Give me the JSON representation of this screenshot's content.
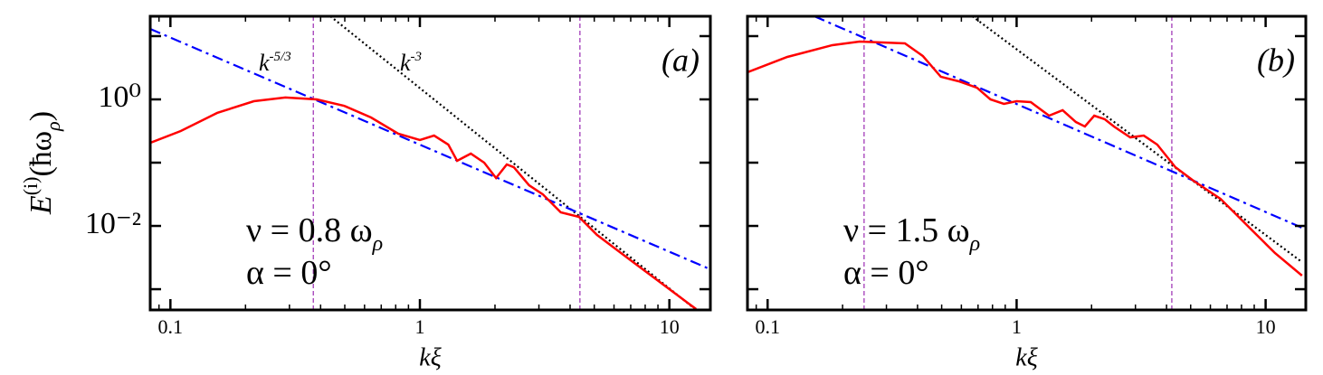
{
  "chart_data": [
    {
      "type": "line",
      "title": "(a)",
      "xlabel": "kξ",
      "ylabel": [
        "E",
        "(i)",
        "(ħω",
        "ρ",
        ")"
      ],
      "log_x": true,
      "log_y": true,
      "xlim": [
        0.083,
        14.6
      ],
      "ylim": [
        0.00047,
        20.6
      ],
      "xticks": [
        0.1,
        1,
        10
      ],
      "xminorticks": [
        0.09,
        0.2,
        0.3,
        0.4,
        0.5,
        0.6,
        0.7,
        0.8,
        0.9,
        2,
        3,
        4,
        5,
        6,
        7,
        8,
        9
      ],
      "yticks": [
        {
          "value": 1,
          "label": "10⁰"
        },
        {
          "value": 0.01,
          "label": "10⁻²"
        }
      ],
      "yminorticks": [
        10,
        0.1,
        0.001
      ],
      "vlines": [
        0.374,
        4.38
      ],
      "vline_color": "#a23bb8",
      "annotations": [
        {
          "base": "k",
          "sup": "-5/3"
        },
        {
          "base": "k",
          "sup": "-3"
        }
      ],
      "params": [
        {
          "base": "ν = 0.8 ω",
          "sub": "ρ"
        },
        {
          "base": "α = 0°"
        }
      ],
      "series": [
        {
          "color": "#ff0000",
          "style": "solid",
          "x": [
            0.083,
            0.11,
            0.154,
            0.216,
            0.289,
            0.386,
            0.496,
            0.637,
            0.819,
            1.0,
            1.14,
            1.3,
            1.41,
            1.6,
            1.81,
            2.02,
            2.23,
            2.38,
            2.74,
            3.11,
            3.67,
            4.34,
            5.13,
            7.16,
            10,
            12.8
          ],
          "values": [
            0.206,
            0.316,
            0.611,
            0.936,
            1.07,
            1.0,
            0.794,
            0.518,
            0.287,
            0.228,
            0.268,
            0.193,
            0.107,
            0.139,
            0.1,
            0.0572,
            0.0936,
            0.0848,
            0.0439,
            0.0316,
            0.0164,
            0.0139,
            0.0072,
            0.00268,
            0.001,
            0.000485
          ]
        },
        {
          "color": "#0000ff",
          "style": "dashdot",
          "x": [
            0.083,
            14.6
          ],
          "values": [
            13.0,
            0.00206
          ]
        },
        {
          "color": "#000000",
          "style": "dotted",
          "x": [
            0.438,
            12.8
          ],
          "values": [
            20.6,
            0.00047
          ]
        }
      ]
    },
    {
      "type": "line",
      "title": "(b)",
      "xlabel": "kξ",
      "log_x": true,
      "log_y": true,
      "xlim": [
        0.083,
        14.5
      ],
      "ylim": [
        0.00047,
        20.6
      ],
      "xticks": [
        0.1,
        1,
        10
      ],
      "xminorticks": [
        0.09,
        0.2,
        0.3,
        0.4,
        0.5,
        0.6,
        0.7,
        0.8,
        0.9,
        2,
        3,
        4,
        5,
        6,
        7,
        8,
        9
      ],
      "yminorticks": [
        10,
        1,
        0.1,
        0.01,
        0.001
      ],
      "vlines": [
        0.244,
        4.2
      ],
      "vline_color": "#a23bb8",
      "params": [
        {
          "base": "ν = 1.5 ω",
          "sub": "ρ"
        },
        {
          "base": "α = 0°"
        }
      ],
      "series": [
        {
          "color": "#ff0000",
          "style": "solid",
          "x": [
            0.083,
            0.12,
            0.182,
            0.234,
            0.356,
            0.42,
            0.496,
            0.586,
            0.693,
            0.785,
            0.889,
            1.0,
            1.14,
            1.35,
            1.53,
            1.73,
            1.88,
            2.05,
            2.26,
            2.46,
            2.86,
            3.24,
            3.67,
            4.34,
            5.13,
            6.59,
            8.47,
            10.9,
            14.0
          ],
          "values": [
            2.68,
            4.69,
            7.2,
            8.21,
            7.69,
            4.85,
            2.28,
            1.93,
            1.53,
            1.0,
            0.849,
            0.936,
            0.906,
            0.553,
            0.674,
            0.439,
            0.373,
            0.553,
            0.485,
            0.373,
            0.251,
            0.268,
            0.193,
            0.0848,
            0.0518,
            0.0268,
            0.01,
            0.00373,
            0.00164
          ]
        },
        {
          "color": "#0000ff",
          "style": "dashdot",
          "x": [
            0.154,
            14.0
          ],
          "values": [
            20.6,
            0.00936
          ]
        },
        {
          "color": "#000000",
          "style": "dotted",
          "x": [
            0.664,
            14.0
          ],
          "values": [
            20.6,
            0.00268
          ]
        }
      ]
    }
  ]
}
